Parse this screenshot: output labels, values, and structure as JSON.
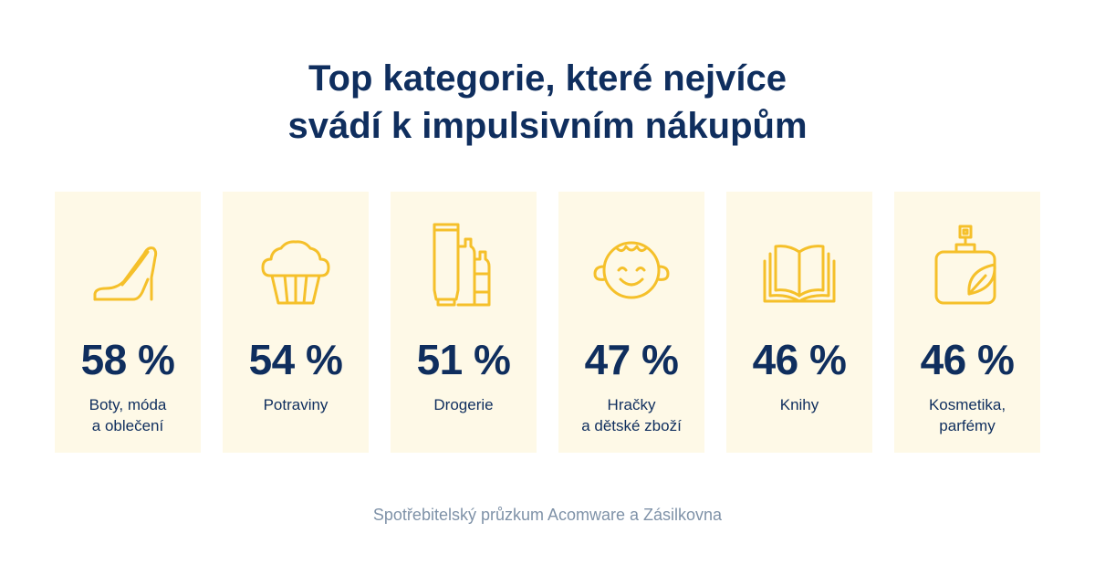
{
  "title": {
    "line1": "Top kategorie, které nejvíce",
    "line2": "svádí k impulsivním nákupům"
  },
  "colors": {
    "title": "#0f2e5e",
    "card_background": "#fef9e7",
    "icon": "#f5c02a",
    "source": "#7f92a8"
  },
  "categories": [
    {
      "icon": "high-heel-shoe-icon",
      "percent": "58 %",
      "label_line1": "Boty, móda",
      "label_line2": "a oblečení"
    },
    {
      "icon": "muffin-icon",
      "percent": "54 %",
      "label_line1": "Potraviny",
      "label_line2": ""
    },
    {
      "icon": "cosmetic-bottles-icon",
      "percent": "51 %",
      "label_line1": "Drogerie",
      "label_line2": ""
    },
    {
      "icon": "child-face-icon",
      "percent": "47 %",
      "label_line1": "Hračky",
      "label_line2": "a dětské zboží"
    },
    {
      "icon": "open-book-icon",
      "percent": "46 %",
      "label_line1": "Knihy",
      "label_line2": ""
    },
    {
      "icon": "perfume-bottle-icon",
      "percent": "46 %",
      "label_line1": "Kosmetika,",
      "label_line2": "parfémy"
    }
  ],
  "source": "Spotřebitelský průzkum Acomware a Zásilkovna"
}
